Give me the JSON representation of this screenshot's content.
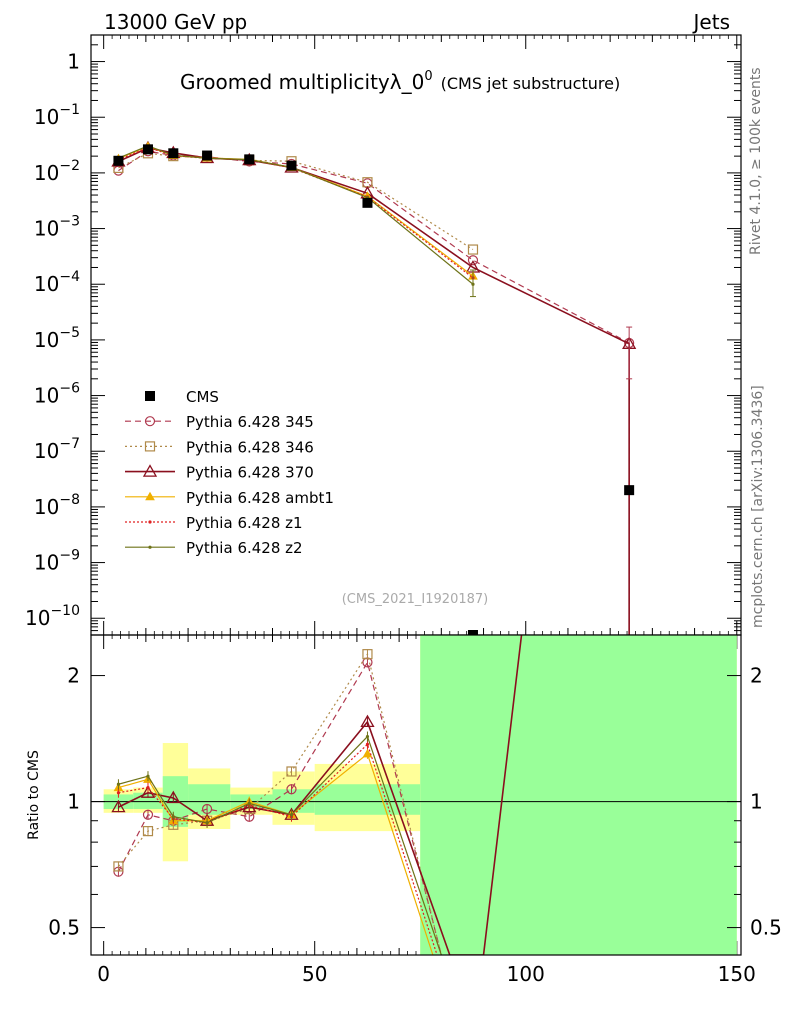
{
  "header": {
    "energy_label": "13000 GeV pp",
    "process_label": "Jets"
  },
  "title": {
    "main": "Groomed multiplicityλ_0",
    "sup": "0",
    "sub": "(CMS jet substructure)"
  },
  "side_text": {
    "rivet": "Rivet 4.1.0, ≥ 100k events",
    "mcplots": "mcplots.cern.ch [arXiv:1306.3436]"
  },
  "watermark": "(CMS_2021_I1920187)",
  "ratio_ylabel": "Ratio to CMS",
  "colors": {
    "data": "#000000",
    "s345": "#b03a50",
    "s346": "#b08a4a",
    "s370": "#8a0f1e",
    "ambt1": "#f0b000",
    "z1": "#e02020",
    "z2": "#6e7318",
    "band_inner": "#99ff99",
    "band_outer": "#ffff99"
  },
  "chart_data": {
    "type": "line",
    "x_ticks": [
      "0",
      "50",
      "100",
      "150"
    ],
    "xlim": [
      -3,
      151
    ],
    "main": {
      "yscale": "log",
      "ylim": [
        5e-11,
        3
      ],
      "y_ticks": [
        {
          "value": 1,
          "base": "1",
          "exp": ""
        },
        {
          "value": 0.1,
          "base": "10",
          "exp": "−1"
        },
        {
          "value": 0.01,
          "base": "10",
          "exp": "−2"
        },
        {
          "value": 0.001,
          "base": "10",
          "exp": "−3"
        },
        {
          "value": 0.0001,
          "base": "10",
          "exp": "−4"
        },
        {
          "value": 1e-05,
          "base": "10",
          "exp": "−5"
        },
        {
          "value": 1e-06,
          "base": "10",
          "exp": "−6"
        },
        {
          "value": 1e-07,
          "base": "10",
          "exp": "−7"
        },
        {
          "value": 1e-08,
          "base": "10",
          "exp": "−8"
        },
        {
          "value": 1e-09,
          "base": "10",
          "exp": "−9"
        },
        {
          "value": 1e-10,
          "base": "10",
          "exp": "−10"
        }
      ],
      "data": {
        "name": "CMS",
        "points": [
          {
            "x": 3.5,
            "y": 0.0165
          },
          {
            "x": 10.5,
            "y": 0.0265
          },
          {
            "x": 16.5,
            "y": 0.0225
          },
          {
            "x": 24.5,
            "y": 0.0205
          },
          {
            "x": 34.5,
            "y": 0.0175
          },
          {
            "x": 44.5,
            "y": 0.0135
          },
          {
            "x": 62.5,
            "y": 0.0029
          },
          {
            "x": 87.5,
            "y": 4.5e-11
          },
          {
            "x": 124.5,
            "y": 2e-08
          }
        ]
      },
      "series": [
        {
          "name": "Pythia 6.428 345",
          "key": "s345",
          "dash": "6,4",
          "marker": "circle",
          "width": 1.2,
          "points": [
            [
              3.5,
              0.011
            ],
            [
              10.5,
              0.0245
            ],
            [
              16.5,
              0.0205
            ],
            [
              24.5,
              0.0195
            ],
            [
              34.5,
              0.016
            ],
            [
              44.5,
              0.0145
            ],
            [
              62.5,
              0.0065
            ],
            [
              87.5,
              0.00027
            ],
            [
              124.5,
              8.8e-06
            ],
            [
              124.5,
              1e-11
            ]
          ]
        },
        {
          "name": "Pythia 6.428 346",
          "key": "s346",
          "dash": "2,3",
          "marker": "square",
          "width": 1.2,
          "points": [
            [
              3.5,
              0.0123
            ],
            [
              10.5,
              0.0225
            ],
            [
              16.5,
              0.02
            ],
            [
              24.5,
              0.0185
            ],
            [
              34.5,
              0.0168
            ],
            [
              44.5,
              0.0162
            ],
            [
              62.5,
              0.0068
            ],
            [
              87.5,
              0.00042
            ]
          ]
        },
        {
          "name": "Pythia 6.428 370",
          "key": "s370",
          "dash": "",
          "marker": "triangle",
          "width": 1.6,
          "points": [
            [
              3.5,
              0.016
            ],
            [
              10.5,
              0.028
            ],
            [
              16.5,
              0.0228
            ],
            [
              24.5,
              0.0185
            ],
            [
              34.5,
              0.017
            ],
            [
              44.5,
              0.0125
            ],
            [
              62.5,
              0.0043
            ],
            [
              87.5,
              0.0002
            ],
            [
              124.5,
              8.5e-06
            ],
            [
              124.5,
              1e-11
            ]
          ]
        },
        {
          "name": "Pythia 6.428 ambt1",
          "key": "ambt1",
          "dash": "",
          "marker": "triangle-filled",
          "width": 1.2,
          "points": [
            [
              3.5,
              0.018
            ],
            [
              10.5,
              0.03
            ],
            [
              16.5,
              0.0205
            ],
            [
              24.5,
              0.0185
            ],
            [
              34.5,
              0.0175
            ],
            [
              44.5,
              0.0125
            ],
            [
              62.5,
              0.0038
            ],
            [
              87.5,
              0.00014
            ]
          ]
        },
        {
          "name": "Pythia 6.428 z1",
          "key": "z1",
          "dash": "2,2",
          "marker": "dot",
          "width": 1.2,
          "points": [
            [
              3.5,
              0.0172
            ],
            [
              10.5,
              0.0285
            ],
            [
              16.5,
              0.0205
            ],
            [
              24.5,
              0.0182
            ],
            [
              34.5,
              0.0172
            ],
            [
              44.5,
              0.0123
            ],
            [
              62.5,
              0.0037
            ],
            [
              87.5,
              0.00013
            ]
          ]
        },
        {
          "name": "Pythia 6.428 z2",
          "key": "z2",
          "dash": "",
          "marker": "dot",
          "width": 1.2,
          "points": [
            [
              3.5,
              0.0185
            ],
            [
              10.5,
              0.0305
            ],
            [
              16.5,
              0.0208
            ],
            [
              24.5,
              0.0183
            ],
            [
              34.5,
              0.0173
            ],
            [
              44.5,
              0.0126
            ],
            [
              62.5,
              0.0036
            ],
            [
              87.5,
              0.0001
            ]
          ]
        }
      ]
    },
    "ratio": {
      "yscale": "log",
      "ylim": [
        0.43,
        2.5
      ],
      "y_ticks": [
        {
          "value": 0.5,
          "label": "0.5"
        },
        {
          "value": 1,
          "label": "1"
        },
        {
          "value": 2,
          "label": "2"
        }
      ],
      "bands": [
        {
          "x0": 0,
          "x1": 7,
          "inner": [
            0.96,
            1.04
          ],
          "outer": [
            0.94,
            1.07
          ]
        },
        {
          "x0": 7,
          "x1": 14,
          "inner": [
            0.96,
            1.05
          ],
          "outer": [
            0.94,
            1.08
          ]
        },
        {
          "x0": 14,
          "x1": 20,
          "inner": [
            0.87,
            1.15
          ],
          "outer": [
            0.72,
            1.38
          ]
        },
        {
          "x0": 20,
          "x1": 30,
          "inner": [
            0.93,
            1.1
          ],
          "outer": [
            0.86,
            1.2
          ]
        },
        {
          "x0": 30,
          "x1": 40,
          "inner": [
            0.96,
            1.04
          ],
          "outer": [
            0.93,
            1.08
          ]
        },
        {
          "x0": 40,
          "x1": 50,
          "inner": [
            0.94,
            1.07
          ],
          "outer": [
            0.88,
            1.18
          ]
        },
        {
          "x0": 50,
          "x1": 75,
          "inner": [
            0.93,
            1.1
          ],
          "outer": [
            0.85,
            1.23
          ]
        },
        {
          "x0": 75,
          "x1": 150,
          "inner": [
            0.3,
            3.0
          ],
          "outer": [
            0.3,
            3.0
          ]
        }
      ],
      "series": [
        {
          "key": "s345",
          "points": [
            [
              3.5,
              0.68
            ],
            [
              10.5,
              0.93
            ],
            [
              16.5,
              0.9
            ],
            [
              24.5,
              0.96
            ],
            [
              34.5,
              0.92
            ],
            [
              44.5,
              1.07
            ],
            [
              62.5,
              2.15
            ],
            [
              80,
              0.43
            ]
          ]
        },
        {
          "key": "s346",
          "points": [
            [
              3.5,
              0.7
            ],
            [
              10.5,
              0.85
            ],
            [
              16.5,
              0.88
            ],
            [
              24.5,
              0.9
            ],
            [
              34.5,
              0.96
            ],
            [
              44.5,
              1.18
            ],
            [
              62.5,
              2.25
            ],
            [
              80,
              0.43
            ]
          ]
        },
        {
          "key": "s370",
          "points": [
            [
              3.5,
              0.97
            ],
            [
              10.5,
              1.05
            ],
            [
              16.5,
              1.02
            ],
            [
              24.5,
              0.9
            ],
            [
              34.5,
              0.97
            ],
            [
              44.5,
              0.93
            ],
            [
              62.5,
              1.55
            ],
            [
              82,
              0.43
            ],
            [
              90,
              0.43
            ],
            [
              99,
              2.5
            ]
          ]
        },
        {
          "key": "ambt1",
          "points": [
            [
              3.5,
              1.08
            ],
            [
              10.5,
              1.13
            ],
            [
              16.5,
              0.9
            ],
            [
              24.5,
              0.9
            ],
            [
              34.5,
              1.0
            ],
            [
              44.5,
              0.93
            ],
            [
              62.5,
              1.3
            ],
            [
              78,
              0.43
            ]
          ]
        },
        {
          "key": "z1",
          "points": [
            [
              3.5,
              1.05
            ],
            [
              10.5,
              1.08
            ],
            [
              16.5,
              0.91
            ],
            [
              24.5,
              0.89
            ],
            [
              34.5,
              0.98
            ],
            [
              44.5,
              0.92
            ],
            [
              62.5,
              1.37
            ],
            [
              79,
              0.43
            ]
          ]
        },
        {
          "key": "z2",
          "points": [
            [
              3.5,
              1.1
            ],
            [
              10.5,
              1.15
            ],
            [
              16.5,
              0.92
            ],
            [
              24.5,
              0.89
            ],
            [
              34.5,
              0.99
            ],
            [
              44.5,
              0.93
            ],
            [
              62.5,
              1.43
            ],
            [
              80,
              0.43
            ]
          ]
        }
      ]
    }
  }
}
